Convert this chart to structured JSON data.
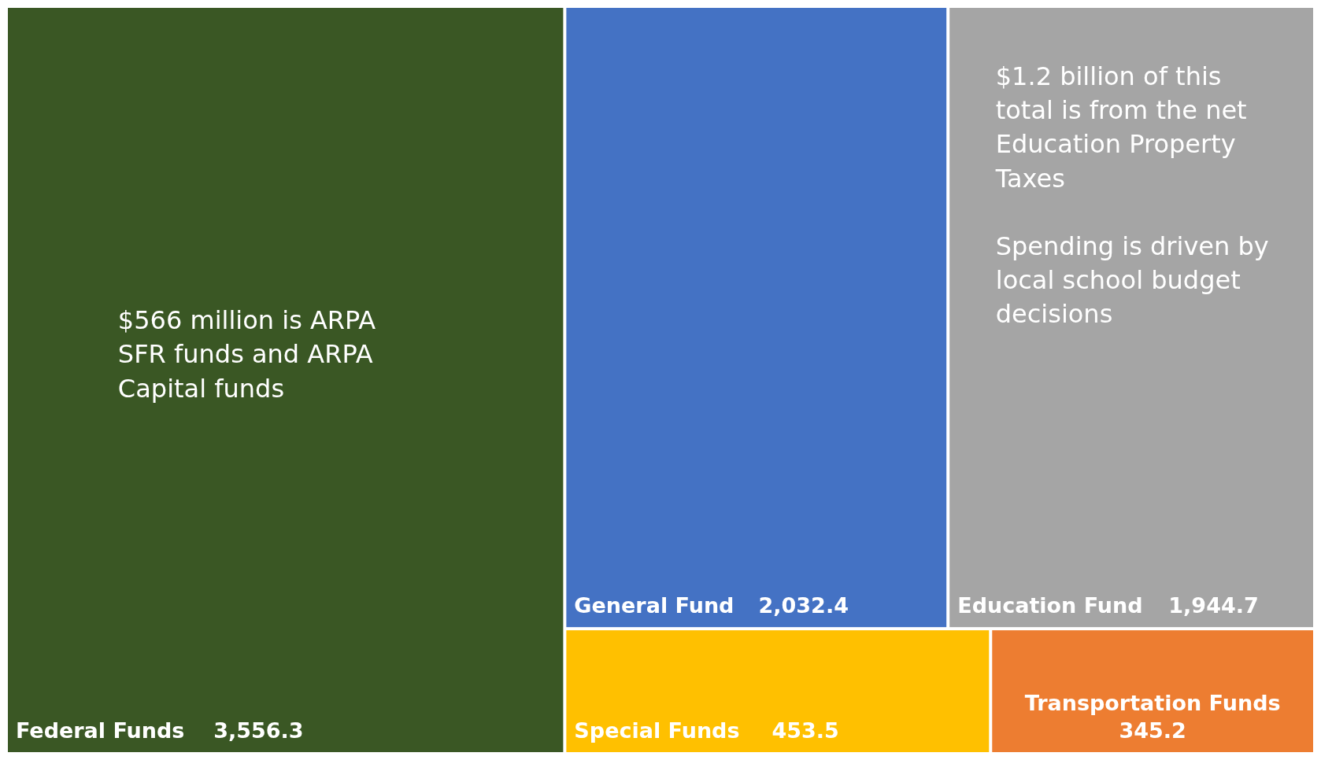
{
  "chart_data": {
    "type": "other",
    "categories": [
      "Federal Funds",
      "General Fund",
      "Education Fund",
      "Special Funds",
      "Transportation Funds"
    ],
    "data_labels": true,
    "value_labels": [
      "3,556.3",
      "2,032.4",
      "1,944.7",
      "453.5",
      "345.2"
    ],
    "values": [
      3556.3,
      2032.4,
      1944.7,
      453.5,
      345.2
    ],
    "colors": [
      "#3a5724",
      "#4472c4",
      "#a5a5a5",
      "#ffc000",
      "#ed7d31"
    ],
    "annotations": [
      {
        "text": "$566 million is ARPA SFR funds and ARPA Capital funds",
        "x": "Federal Funds"
      },
      {
        "text": "$1.2 billion of this total is from the net Education Property Taxes",
        "x": "Education Fund"
      },
      {
        "text": "Spending is driven by local school budget decisions",
        "x": "Education Fund"
      }
    ]
  }
}
